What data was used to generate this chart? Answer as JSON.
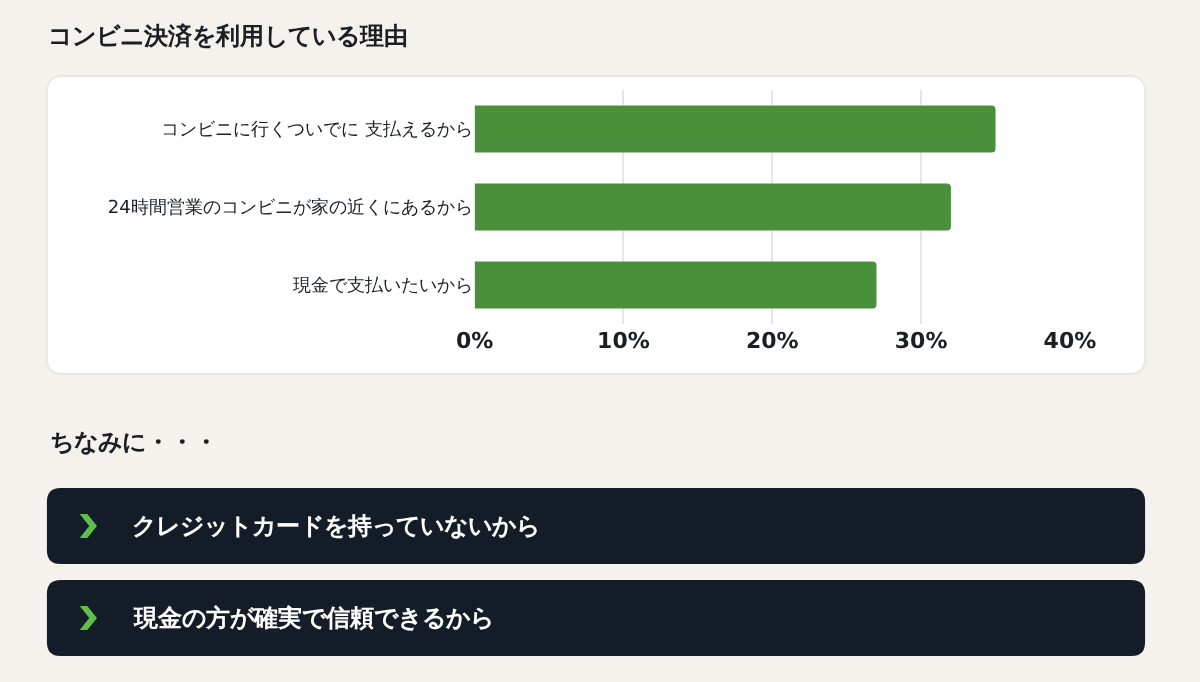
{
  "chart_data": {
    "type": "bar",
    "orientation": "horizontal",
    "title": "コンビニ決済を利用している理由",
    "categories": [
      "コンビニに行くついでに 支払えるから",
      "24時間営業のコンビニが家の近くにあるから",
      "現金で支払いたいから"
    ],
    "values": [
      35,
      32,
      27
    ],
    "color": "#4a8f3a",
    "xlim": [
      0,
      40
    ],
    "xticks": [
      {
        "value": 0,
        "label": "0%"
      },
      {
        "value": 10,
        "label": "10%"
      },
      {
        "value": 20,
        "label": "20%"
      },
      {
        "value": 30,
        "label": "30%"
      },
      {
        "value": 40,
        "label": "40%"
      }
    ],
    "grid": "x",
    "legend": false,
    "annotations": [
      "ちなみに・・・",
      "クレジットカードを持っていないから",
      "現金の方が確実で信頼できるから"
    ]
  }
}
